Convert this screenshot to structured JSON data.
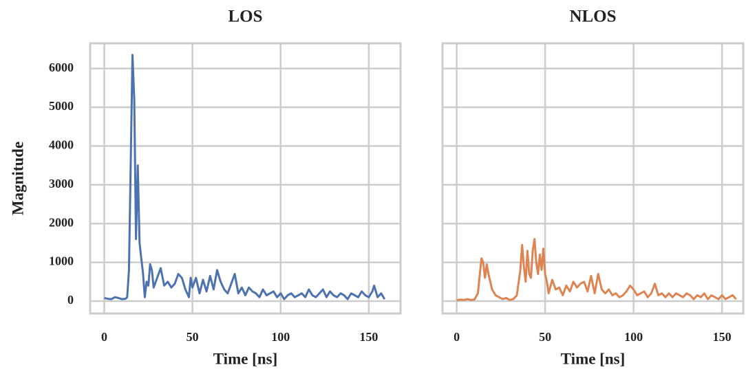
{
  "chart_data": [
    {
      "type": "line",
      "title": "LOS",
      "xlabel": "Time [ns]",
      "ylabel": "Magnitude",
      "color": "#4c72b0",
      "x": [
        0,
        2,
        4,
        6,
        8,
        10,
        12,
        13,
        14,
        15,
        16,
        17,
        18,
        19,
        20,
        21,
        22,
        23,
        24,
        25,
        26,
        27,
        28,
        30,
        32,
        34,
        36,
        38,
        40,
        42,
        44,
        46,
        48,
        49,
        50,
        52,
        54,
        56,
        58,
        60,
        62,
        64,
        66,
        68,
        70,
        72,
        74,
        76,
        78,
        80,
        82,
        84,
        86,
        88,
        90,
        92,
        94,
        96,
        98,
        100,
        102,
        104,
        106,
        108,
        110,
        112,
        114,
        116,
        118,
        120,
        122,
        124,
        126,
        128,
        130,
        132,
        134,
        136,
        138,
        140,
        142,
        144,
        146,
        148,
        150,
        152,
        153,
        155,
        157,
        159
      ],
      "values": [
        80,
        60,
        50,
        100,
        80,
        50,
        60,
        100,
        800,
        3500,
        6350,
        5200,
        1600,
        3500,
        1500,
        1100,
        700,
        100,
        500,
        400,
        950,
        800,
        350,
        600,
        850,
        400,
        500,
        350,
        450,
        700,
        600,
        300,
        100,
        600,
        350,
        600,
        200,
        550,
        250,
        650,
        300,
        800,
        500,
        300,
        200,
        450,
        700,
        200,
        350,
        150,
        350,
        250,
        200,
        100,
        300,
        150,
        200,
        250,
        100,
        200,
        50,
        150,
        200,
        100,
        150,
        200,
        100,
        300,
        150,
        100,
        200,
        300,
        100,
        250,
        150,
        100,
        200,
        150,
        50,
        200,
        150,
        100,
        250,
        150,
        100,
        250,
        400,
        100,
        200,
        50
      ],
      "xlim": [
        -8,
        168
      ],
      "xticks": [
        0,
        50,
        100,
        150
      ],
      "ylim": [
        -320,
        6650
      ],
      "yticks": [
        0,
        1000,
        2000,
        3000,
        4000,
        5000,
        6000
      ],
      "grid": true,
      "show_ytick_labels": true
    },
    {
      "type": "line",
      "title": "NLOS",
      "xlabel": "Time [ns]",
      "color": "#dd8452",
      "x": [
        0,
        2,
        4,
        6,
        8,
        10,
        12,
        14,
        15,
        16,
        17,
        18,
        20,
        22,
        24,
        26,
        28,
        30,
        32,
        34,
        36,
        37,
        38,
        39,
        40,
        41,
        42,
        43,
        44,
        45,
        46,
        47,
        48,
        49,
        50,
        51,
        52,
        54,
        56,
        58,
        60,
        62,
        64,
        66,
        68,
        70,
        72,
        74,
        76,
        78,
        80,
        82,
        84,
        86,
        88,
        90,
        92,
        94,
        96,
        98,
        100,
        102,
        104,
        106,
        108,
        110,
        112,
        114,
        116,
        118,
        120,
        122,
        124,
        126,
        128,
        130,
        132,
        134,
        136,
        138,
        140,
        142,
        144,
        146,
        148,
        150,
        152,
        154,
        156,
        158
      ],
      "values": [
        20,
        40,
        30,
        50,
        30,
        40,
        200,
        1100,
        1000,
        600,
        950,
        700,
        300,
        150,
        100,
        50,
        80,
        30,
        50,
        150,
        800,
        1450,
        900,
        500,
        1300,
        700,
        600,
        1300,
        1600,
        1000,
        700,
        1200,
        800,
        1350,
        700,
        500,
        200,
        550,
        300,
        350,
        150,
        400,
        250,
        500,
        350,
        450,
        500,
        250,
        650,
        200,
        700,
        300,
        200,
        300,
        150,
        200,
        100,
        150,
        250,
        400,
        300,
        150,
        200,
        250,
        100,
        200,
        450,
        150,
        200,
        100,
        200,
        100,
        200,
        150,
        100,
        200,
        150,
        50,
        150,
        100,
        200,
        50,
        150,
        100,
        50,
        150,
        50,
        100,
        150,
        50
      ],
      "xlim": [
        -8,
        162
      ],
      "xticks": [
        0,
        50,
        100,
        150
      ],
      "ylim": [
        -320,
        6650
      ],
      "yticks": [
        0,
        1000,
        2000,
        3000,
        4000,
        5000,
        6000
      ],
      "grid": true,
      "show_ytick_labels": false
    }
  ]
}
